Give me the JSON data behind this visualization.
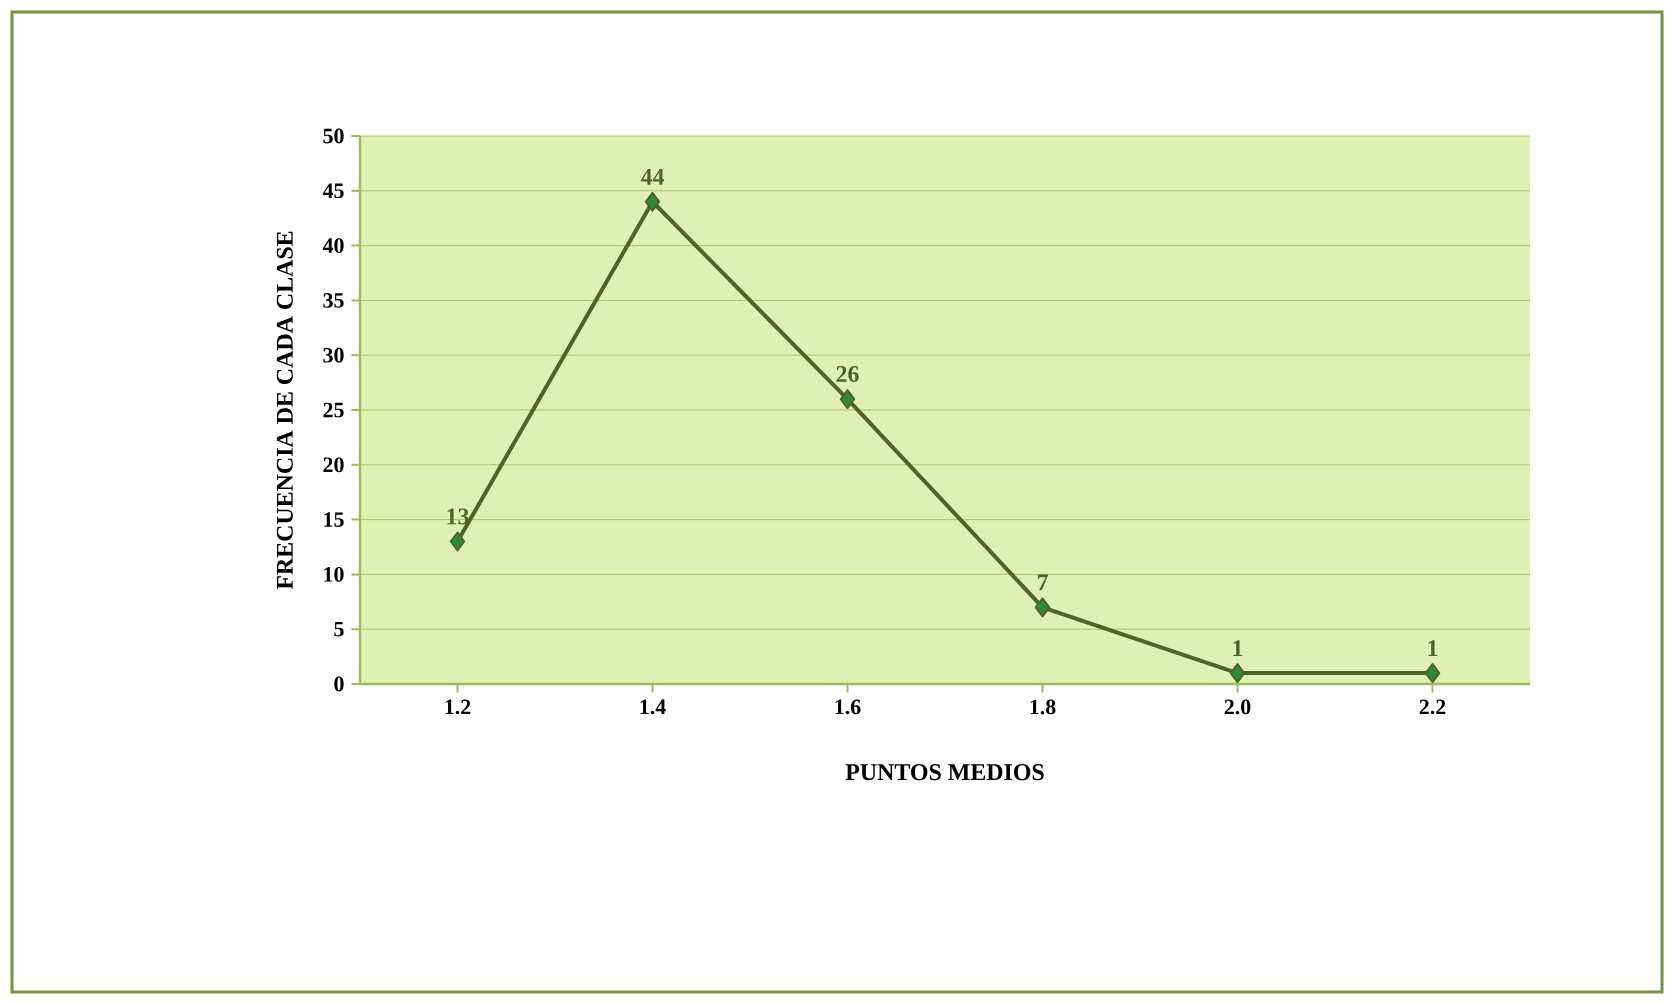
{
  "chart_data": {
    "type": "line",
    "xlabel": "PUNTOS MEDIOS",
    "ylabel": "FRECUENCIA DE CADA CLASE",
    "categories": [
      "1.2",
      "1.4",
      "1.6",
      "1.8",
      "2.0",
      "2.2"
    ],
    "values": [
      13,
      44,
      26,
      7,
      1,
      1
    ],
    "color": "#4f6228",
    "marker": "diamond",
    "ylim": [
      0,
      50
    ],
    "yticks": [
      0,
      5,
      10,
      15,
      20,
      25,
      30,
      35,
      40,
      45,
      50
    ],
    "grid": "y",
    "data_labels": true
  }
}
